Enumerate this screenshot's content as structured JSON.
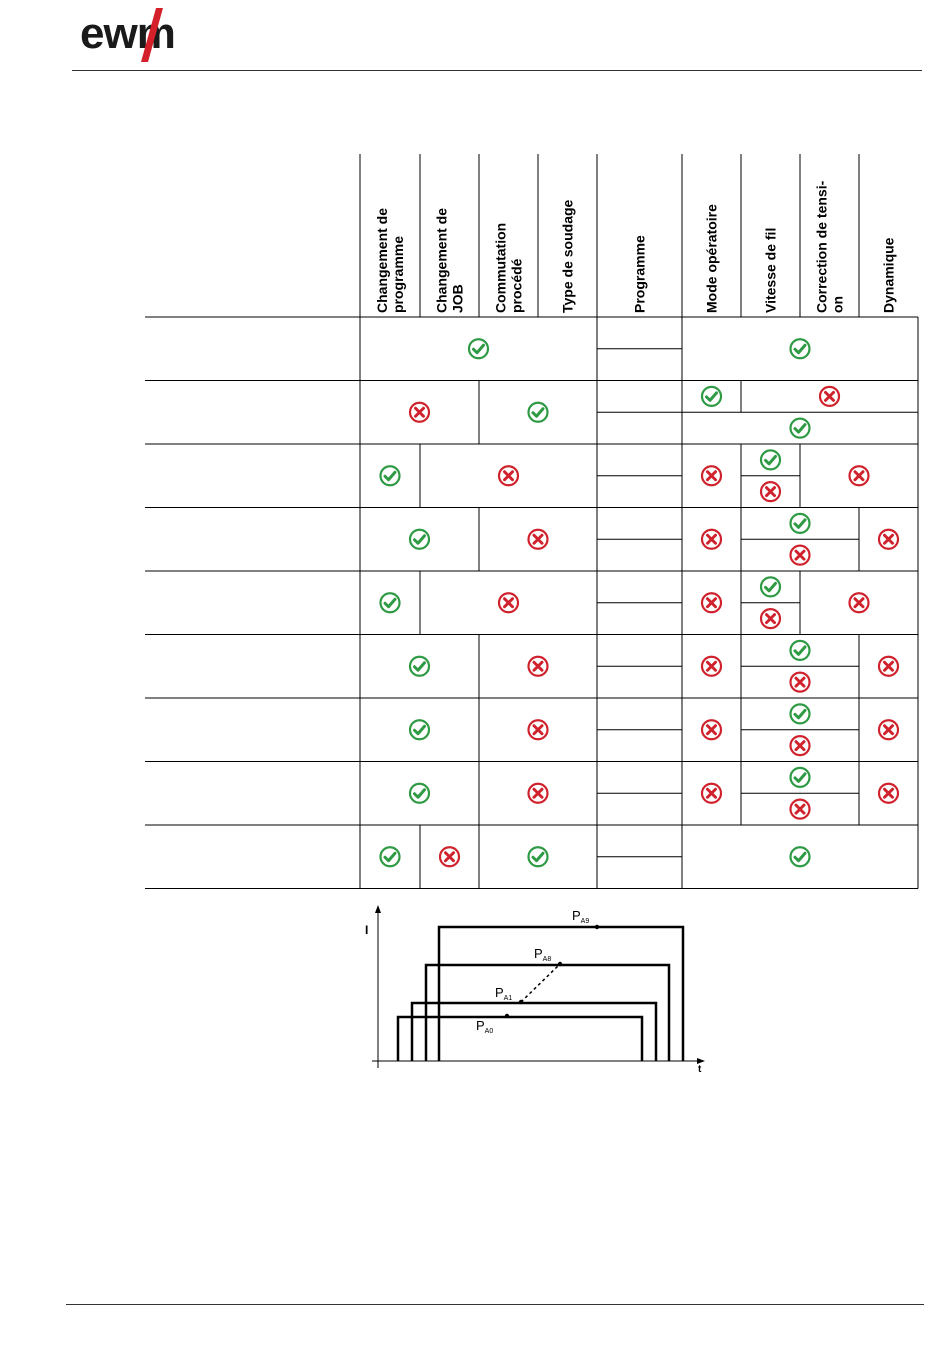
{
  "brand": {
    "name": "ewm",
    "accent": "#d4202a",
    "text_color": "#1a1a1a"
  },
  "table": {
    "headers": [
      [
        "Changement de",
        "programme"
      ],
      [
        "Changement de",
        "JOB"
      ],
      [
        "Commutation",
        "procédé"
      ],
      [
        "Type de soudage"
      ],
      [
        "Programme"
      ],
      [
        "Mode opératoire"
      ],
      [
        "Vitesse de fil"
      ],
      [
        "Correction de tensi-",
        "on"
      ],
      [
        "Dynamique"
      ]
    ],
    "colors": {
      "check": "#2e9a44",
      "cross": "#d0222c"
    },
    "rows": [
      {
        "cells": [
          {
            "c": 0,
            "span": 4,
            "r": "full",
            "v": "check"
          },
          {
            "c": 5,
            "span": 4,
            "r": "full",
            "v": "check"
          }
        ]
      },
      {
        "cells": [
          {
            "c": 0,
            "span": 2,
            "r": "full",
            "v": "cross"
          },
          {
            "c": 2,
            "span": 2,
            "r": "full",
            "v": "check"
          },
          {
            "c": 5,
            "span": 1,
            "r": "top",
            "v": "check"
          },
          {
            "c": 6,
            "span": 3,
            "r": "top",
            "v": "cross"
          },
          {
            "c": 5,
            "span": 4,
            "r": "bottom",
            "v": "check"
          }
        ]
      },
      {
        "cells": [
          {
            "c": 0,
            "span": 1,
            "r": "full",
            "v": "check"
          },
          {
            "c": 1,
            "span": 3,
            "r": "full",
            "v": "cross"
          },
          {
            "c": 5,
            "span": 1,
            "r": "full",
            "v": "cross"
          },
          {
            "c": 6,
            "span": 1,
            "r": "top",
            "v": "check"
          },
          {
            "c": 6,
            "span": 1,
            "r": "bottom",
            "v": "cross"
          },
          {
            "c": 7,
            "span": 2,
            "r": "full",
            "v": "cross"
          }
        ]
      },
      {
        "cells": [
          {
            "c": 0,
            "span": 2,
            "r": "full",
            "v": "check"
          },
          {
            "c": 2,
            "span": 2,
            "r": "full",
            "v": "cross"
          },
          {
            "c": 5,
            "span": 1,
            "r": "full",
            "v": "cross"
          },
          {
            "c": 6,
            "span": 2,
            "r": "top",
            "v": "check"
          },
          {
            "c": 6,
            "span": 2,
            "r": "bottom",
            "v": "cross"
          },
          {
            "c": 8,
            "span": 1,
            "r": "full",
            "v": "cross"
          }
        ]
      },
      {
        "cells": [
          {
            "c": 0,
            "span": 1,
            "r": "full",
            "v": "check"
          },
          {
            "c": 1,
            "span": 3,
            "r": "full",
            "v": "cross"
          },
          {
            "c": 5,
            "span": 1,
            "r": "full",
            "v": "cross"
          },
          {
            "c": 6,
            "span": 1,
            "r": "top",
            "v": "check"
          },
          {
            "c": 6,
            "span": 1,
            "r": "bottom",
            "v": "cross"
          },
          {
            "c": 7,
            "span": 2,
            "r": "full",
            "v": "cross"
          }
        ]
      },
      {
        "cells": [
          {
            "c": 0,
            "span": 2,
            "r": "full",
            "v": "check"
          },
          {
            "c": 2,
            "span": 2,
            "r": "full",
            "v": "cross"
          },
          {
            "c": 5,
            "span": 1,
            "r": "full",
            "v": "cross"
          },
          {
            "c": 6,
            "span": 2,
            "r": "top",
            "v": "check"
          },
          {
            "c": 6,
            "span": 2,
            "r": "bottom",
            "v": "cross"
          },
          {
            "c": 8,
            "span": 1,
            "r": "full",
            "v": "cross"
          }
        ]
      },
      {
        "cells": [
          {
            "c": 0,
            "span": 2,
            "r": "full",
            "v": "check"
          },
          {
            "c": 2,
            "span": 2,
            "r": "full",
            "v": "cross"
          },
          {
            "c": 5,
            "span": 1,
            "r": "full",
            "v": "cross"
          },
          {
            "c": 6,
            "span": 2,
            "r": "top",
            "v": "check"
          },
          {
            "c": 6,
            "span": 2,
            "r": "bottom",
            "v": "cross"
          },
          {
            "c": 8,
            "span": 1,
            "r": "full",
            "v": "cross"
          }
        ]
      },
      {
        "cells": [
          {
            "c": 0,
            "span": 2,
            "r": "full",
            "v": "check"
          },
          {
            "c": 2,
            "span": 2,
            "r": "full",
            "v": "cross"
          },
          {
            "c": 5,
            "span": 1,
            "r": "full",
            "v": "cross"
          },
          {
            "c": 6,
            "span": 2,
            "r": "top",
            "v": "check"
          },
          {
            "c": 6,
            "span": 2,
            "r": "bottom",
            "v": "cross"
          },
          {
            "c": 8,
            "span": 1,
            "r": "full",
            "v": "cross"
          }
        ]
      },
      {
        "cells": [
          {
            "c": 0,
            "span": 1,
            "r": "full",
            "v": "check"
          },
          {
            "c": 1,
            "span": 1,
            "r": "full",
            "v": "cross"
          },
          {
            "c": 2,
            "span": 2,
            "r": "full",
            "v": "check"
          },
          {
            "c": 5,
            "span": 4,
            "r": "full",
            "v": "check"
          }
        ]
      }
    ]
  },
  "diagram": {
    "y_axis_label": "I",
    "x_axis_label": "t",
    "points": [
      {
        "main": "P",
        "sub": "A9"
      },
      {
        "main": "P",
        "sub": "A8"
      },
      {
        "main": "P",
        "sub": "A1"
      },
      {
        "main": "P",
        "sub": "A0"
      }
    ]
  }
}
